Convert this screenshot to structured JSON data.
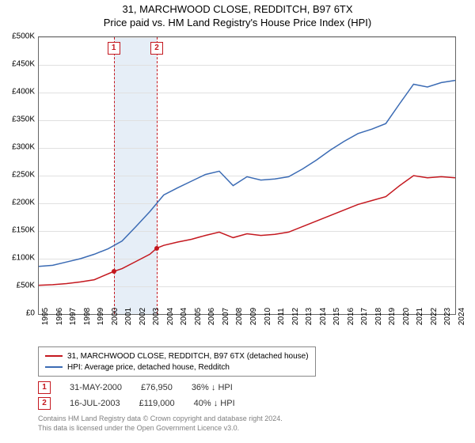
{
  "title": {
    "line1": "31, MARCHWOOD CLOSE, REDDITCH, B97 6TX",
    "line2": "Price paid vs. HM Land Registry's House Price Index (HPI)"
  },
  "chart": {
    "type": "line",
    "background_color": "#ffffff",
    "grid_color": "#e0e0e0",
    "axis_color": "#666666",
    "xlim": [
      1995,
      2025
    ],
    "ylim": [
      0,
      500000
    ],
    "ytick_step": 50000,
    "xtick_step": 1,
    "ytick_labels": [
      "£0",
      "£50K",
      "£100K",
      "£150K",
      "£200K",
      "£250K",
      "£300K",
      "£350K",
      "£400K",
      "£450K",
      "£500K"
    ],
    "xtick_labels": [
      "1995",
      "1996",
      "1997",
      "1998",
      "1999",
      "2000",
      "2001",
      "2002",
      "2003",
      "2004",
      "2004",
      "2005",
      "2006",
      "2007",
      "2008",
      "2009",
      "2010",
      "2011",
      "2012",
      "2013",
      "2014",
      "2015",
      "2016",
      "2017",
      "2018",
      "2019",
      "2020",
      "2021",
      "2022",
      "2023",
      "2024"
    ],
    "shade_band": {
      "x_from": 2000.4,
      "x_to": 2003.5,
      "color": "#e6eef7"
    },
    "series": [
      {
        "id": "property",
        "label": "31, MARCHWOOD CLOSE, REDDITCH, B97 6TX (detached house)",
        "color": "#c4181f",
        "line_width": 1.5,
        "data": [
          [
            1995,
            52000
          ],
          [
            1996,
            53000
          ],
          [
            1997,
            55000
          ],
          [
            1998,
            58000
          ],
          [
            1999,
            62000
          ],
          [
            2000.4,
            76950
          ],
          [
            2001,
            82000
          ],
          [
            2002,
            95000
          ],
          [
            2003,
            108000
          ],
          [
            2003.5,
            119000
          ],
          [
            2004,
            124000
          ],
          [
            2005,
            130000
          ],
          [
            2006,
            135000
          ],
          [
            2007,
            142000
          ],
          [
            2008,
            148000
          ],
          [
            2009,
            138000
          ],
          [
            2010,
            145000
          ],
          [
            2011,
            142000
          ],
          [
            2012,
            144000
          ],
          [
            2013,
            148000
          ],
          [
            2014,
            158000
          ],
          [
            2015,
            168000
          ],
          [
            2016,
            178000
          ],
          [
            2017,
            188000
          ],
          [
            2018,
            198000
          ],
          [
            2019,
            205000
          ],
          [
            2020,
            212000
          ],
          [
            2021,
            232000
          ],
          [
            2022,
            250000
          ],
          [
            2023,
            246000
          ],
          [
            2024,
            248000
          ],
          [
            2025,
            246000
          ]
        ]
      },
      {
        "id": "hpi",
        "label": "HPI: Average price, detached house, Redditch",
        "color": "#3b6bb4",
        "line_width": 1.5,
        "data": [
          [
            1995,
            86000
          ],
          [
            1996,
            88000
          ],
          [
            1997,
            94000
          ],
          [
            1998,
            100000
          ],
          [
            1999,
            108000
          ],
          [
            2000,
            118000
          ],
          [
            2001,
            132000
          ],
          [
            2002,
            158000
          ],
          [
            2003,
            185000
          ],
          [
            2004,
            215000
          ],
          [
            2005,
            228000
          ],
          [
            2006,
            240000
          ],
          [
            2007,
            252000
          ],
          [
            2008,
            258000
          ],
          [
            2009,
            232000
          ],
          [
            2010,
            248000
          ],
          [
            2011,
            242000
          ],
          [
            2012,
            244000
          ],
          [
            2013,
            248000
          ],
          [
            2014,
            262000
          ],
          [
            2015,
            278000
          ],
          [
            2016,
            296000
          ],
          [
            2017,
            312000
          ],
          [
            2018,
            326000
          ],
          [
            2019,
            334000
          ],
          [
            2020,
            344000
          ],
          [
            2021,
            380000
          ],
          [
            2022,
            415000
          ],
          [
            2023,
            410000
          ],
          [
            2024,
            418000
          ],
          [
            2025,
            422000
          ]
        ]
      }
    ],
    "markers": [
      {
        "n": "1",
        "x": 2000.4,
        "y": 76950,
        "color": "#c4181f"
      },
      {
        "n": "2",
        "x": 2003.5,
        "y": 119000,
        "color": "#c4181f"
      }
    ]
  },
  "legend": {
    "border_color": "#888888",
    "items": [
      {
        "color": "#c4181f",
        "label": "31, MARCHWOOD CLOSE, REDDITCH, B97 6TX (detached house)"
      },
      {
        "color": "#3b6bb4",
        "label": "HPI: Average price, detached house, Redditch"
      }
    ]
  },
  "sales": [
    {
      "n": "1",
      "color": "#c4181f",
      "date": "31-MAY-2000",
      "price": "£76,950",
      "delta": "36% ↓ HPI"
    },
    {
      "n": "2",
      "color": "#c4181f",
      "date": "16-JUL-2003",
      "price": "£119,000",
      "delta": "40% ↓ HPI"
    }
  ],
  "footer": {
    "line1": "Contains HM Land Registry data © Crown copyright and database right 2024.",
    "line2": "This data is licensed under the Open Government Licence v3.0."
  }
}
